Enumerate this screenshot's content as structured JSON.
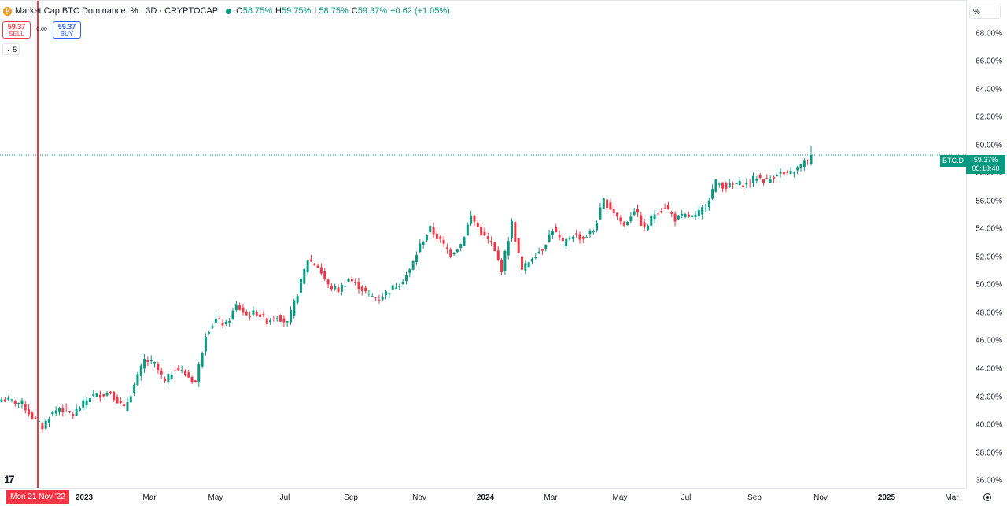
{
  "legend": {
    "coin_glyph": "₿",
    "title": "Market Cap BTC Dominance, % · 3D · CRYPTOCAP",
    "o_label": "O",
    "o_value": "58.75%",
    "h_label": "H",
    "h_value": "59.75%",
    "l_label": "L",
    "l_value": "58.75%",
    "c_label": "C",
    "c_value": "59.37%",
    "change": "+0.62 (+1.05%)"
  },
  "trade": {
    "sell_price": "59.37",
    "sell_label": "SELL",
    "spread": "0.00",
    "buy_price": "59.37",
    "buy_label": "BUY"
  },
  "collapse": {
    "glyph": "⌄",
    "count": "5"
  },
  "price_scale": {
    "unit": "%"
  },
  "price_tag": {
    "symbol": "BTC.D",
    "value": "59.37%",
    "countdown": "05:13:40"
  },
  "crosshair": {
    "date_label": "Mon 21 Nov '22"
  },
  "colors": {
    "up": "#089981",
    "down": "#f23645",
    "crosshair": "#f23645"
  },
  "chart_data": {
    "type": "candlestick",
    "y_unit": "%",
    "ylim": [
      35.5,
      70.4
    ],
    "y_ticks": [
      "68.00%",
      "66.00%",
      "64.00%",
      "62.00%",
      "60.00%",
      "58.00%",
      "56.00%",
      "54.00%",
      "52.00%",
      "50.00%",
      "48.00%",
      "46.00%",
      "44.00%",
      "42.00%",
      "40.00%",
      "38.00%",
      "36.00%"
    ],
    "x_ticks": [
      {
        "label": "2023",
        "bold": true
      },
      {
        "label": "Mar",
        "bold": false
      },
      {
        "label": "May",
        "bold": false
      },
      {
        "label": "Jul",
        "bold": false
      },
      {
        "label": "Sep",
        "bold": false
      },
      {
        "label": "Nov",
        "bold": false
      },
      {
        "label": "2024",
        "bold": true
      },
      {
        "label": "Mar",
        "bold": false
      },
      {
        "label": "May",
        "bold": false
      },
      {
        "label": "Jul",
        "bold": false
      },
      {
        "label": "Sep",
        "bold": false
      },
      {
        "label": "Nov",
        "bold": false
      },
      {
        "label": "2025",
        "bold": true
      },
      {
        "label": "Mar",
        "bold": false
      }
    ],
    "close_path": [
      [
        0,
        41.9
      ],
      [
        6,
        41.6
      ],
      [
        9,
        40.6
      ],
      [
        12,
        39.9
      ],
      [
        14,
        40.7
      ],
      [
        17,
        41.3
      ],
      [
        21,
        40.8
      ],
      [
        26,
        42.1
      ],
      [
        32,
        42.4
      ],
      [
        36,
        41.2
      ],
      [
        39,
        42.9
      ],
      [
        42,
        44.7
      ],
      [
        45,
        44.4
      ],
      [
        48,
        43.1
      ],
      [
        51,
        44.2
      ],
      [
        54,
        43.7
      ],
      [
        57,
        43.1
      ],
      [
        60,
        46.6
      ],
      [
        63,
        47.6
      ],
      [
        66,
        47.2
      ],
      [
        69,
        48.6
      ],
      [
        72,
        47.9
      ],
      [
        75,
        48.1
      ],
      [
        78,
        47.5
      ],
      [
        81,
        47.9
      ],
      [
        84,
        47.3
      ],
      [
        87,
        49.5
      ],
      [
        90,
        51.9
      ],
      [
        93,
        51.4
      ],
      [
        96,
        50.0
      ],
      [
        99,
        49.7
      ],
      [
        102,
        50.5
      ],
      [
        105,
        50.0
      ],
      [
        108,
        49.3
      ],
      [
        111,
        49.1
      ],
      [
        114,
        49.7
      ],
      [
        117,
        50.2
      ],
      [
        120,
        51.1
      ],
      [
        123,
        52.9
      ],
      [
        126,
        54.1
      ],
      [
        129,
        53.2
      ],
      [
        132,
        52.3
      ],
      [
        135,
        53.0
      ],
      [
        138,
        55.0
      ],
      [
        141,
        53.8
      ],
      [
        144,
        53.0
      ],
      [
        147,
        51.2
      ],
      [
        150,
        54.5
      ],
      [
        153,
        51.1
      ],
      [
        156,
        52.1
      ],
      [
        159,
        52.7
      ],
      [
        162,
        54.1
      ],
      [
        165,
        53.0
      ],
      [
        168,
        53.7
      ],
      [
        171,
        53.4
      ],
      [
        174,
        54.0
      ],
      [
        177,
        56.1
      ],
      [
        180,
        55.3
      ],
      [
        183,
        54.3
      ],
      [
        186,
        55.5
      ],
      [
        189,
        54.0
      ],
      [
        192,
        55.2
      ],
      [
        195,
        55.7
      ],
      [
        198,
        54.8
      ],
      [
        201,
        55.0
      ],
      [
        204,
        54.9
      ],
      [
        207,
        55.8
      ],
      [
        210,
        57.4
      ],
      [
        213,
        57.1
      ],
      [
        216,
        57.3
      ],
      [
        219,
        57.3
      ],
      [
        222,
        57.8
      ],
      [
        225,
        57.5
      ],
      [
        228,
        58.1
      ],
      [
        231,
        57.9
      ],
      [
        234,
        58.4
      ],
      [
        237,
        59.1
      ],
      [
        238,
        59.37
      ]
    ]
  }
}
